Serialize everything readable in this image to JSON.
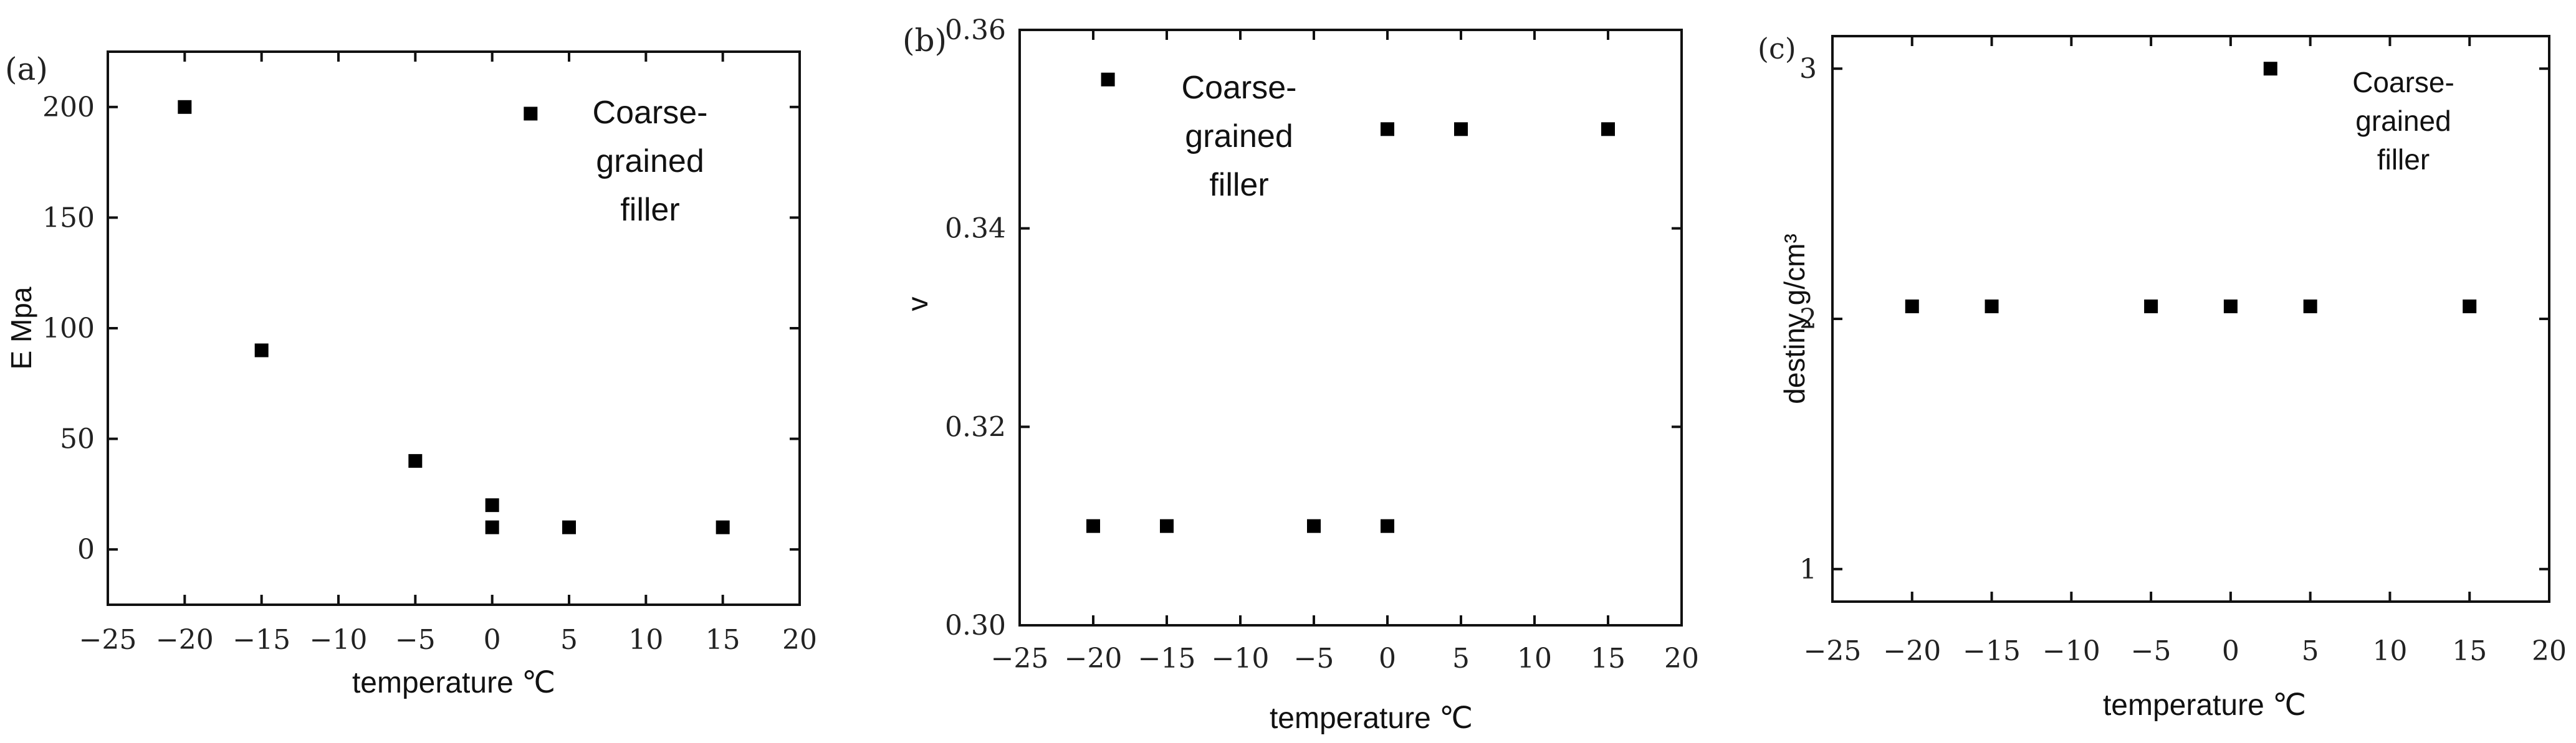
{
  "chart_data": [
    {
      "type": "scatter",
      "panel": "(a)",
      "title": "",
      "xlabel": "temperature ℃",
      "ylabel": "E Mpa",
      "xlim": [
        -25,
        20
      ],
      "ylim": [
        -25,
        225
      ],
      "xticks": [
        -25,
        -20,
        -15,
        -10,
        -5,
        0,
        5,
        10,
        15,
        20
      ],
      "yticks": [
        0,
        50,
        100,
        150,
        200
      ],
      "annotation": [
        "Coarse-",
        "grained",
        "filler"
      ],
      "grid": false,
      "series": [
        {
          "x": [
            -20,
            -15,
            -5,
            0,
            0,
            2.5,
            5,
            15
          ],
          "y": [
            200,
            90,
            40,
            20,
            10,
            197,
            10,
            10
          ]
        }
      ]
    },
    {
      "type": "scatter",
      "panel": "(b)",
      "title": "",
      "xlabel": "temperature ℃",
      "ylabel": "v",
      "xlim": [
        -25,
        20
      ],
      "ylim": [
        0.3,
        0.36
      ],
      "xticks": [
        -25,
        -20,
        -15,
        -10,
        -5,
        0,
        5,
        10,
        15,
        20
      ],
      "yticks": [
        "0.30",
        "0.32",
        "0.34",
        "0.36"
      ],
      "annotation": [
        "Coarse-",
        "grained",
        "filler"
      ],
      "grid": false,
      "series": [
        {
          "x": [
            -20,
            -19,
            -15,
            -5,
            0,
            0,
            5,
            15
          ],
          "y": [
            0.31,
            0.355,
            0.31,
            0.31,
            0.31,
            0.35,
            0.35,
            0.35
          ]
        }
      ]
    },
    {
      "type": "scatter",
      "panel": "(c)",
      "title": "",
      "xlabel": "temperature ℃",
      "ylabel": "destiny g/cm³",
      "xlim": [
        -25,
        20
      ],
      "ylim": [
        0.87,
        3.13
      ],
      "xticks": [
        -25,
        -20,
        -15,
        -10,
        -5,
        0,
        5,
        10,
        15,
        20
      ],
      "yticks": [
        1,
        2,
        3
      ],
      "annotation": [
        "Coarse-",
        "grained",
        "filler"
      ],
      "grid": false,
      "series": [
        {
          "x": [
            -20,
            -15,
            -5,
            0,
            2.5,
            5,
            15
          ],
          "y": [
            2.05,
            2.05,
            2.05,
            2.05,
            3.0,
            2.05,
            2.05
          ]
        }
      ]
    }
  ]
}
